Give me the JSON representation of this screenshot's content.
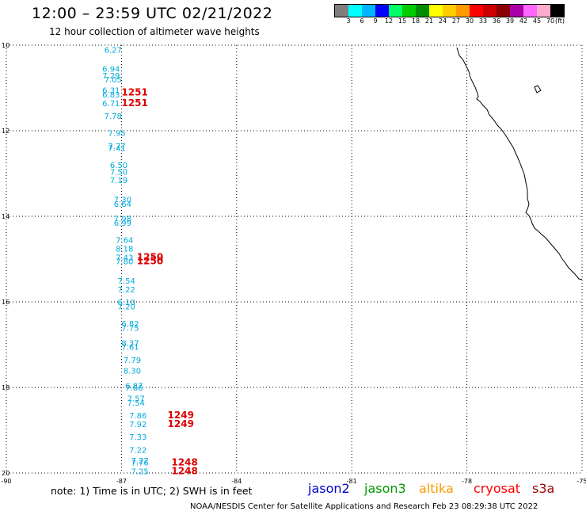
{
  "header": {
    "title": "12:00 – 23:59 UTC 02/21/2022",
    "subtitle": "12 hour collection of altimeter wave heights"
  },
  "color_scale": {
    "colors": [
      "#7f7f7f",
      "#00ffff",
      "#00b4ff",
      "#0000ff",
      "#00ff66",
      "#00cc00",
      "#008c00",
      "#ffff00",
      "#ffcc00",
      "#ff9900",
      "#ff0000",
      "#cc0000",
      "#8c0000",
      "#aa00aa",
      "#ff66ff",
      "#ffaacc",
      "#000000"
    ],
    "labels": [
      "3",
      "6",
      "9",
      "12",
      "15",
      "18",
      "21",
      "24",
      "27",
      "30",
      "33",
      "36",
      "39",
      "42",
      "45",
      "70",
      "(ft)"
    ]
  },
  "axes": {
    "lat_labels": [
      "10",
      "12",
      "14",
      "16",
      "18",
      "20"
    ],
    "lon_labels": [
      "-90",
      "-87",
      "-84",
      "-81",
      "-78",
      "-75"
    ]
  },
  "wave_readings": [
    {
      "lat": 10.1,
      "lon": -87.45,
      "text": "6.27"
    },
    {
      "lat": 10.55,
      "lon": -87.5,
      "text": "6.94"
    },
    {
      "lat": 10.7,
      "lon": -87.5,
      "text": "7.29"
    },
    {
      "lat": 10.8,
      "lon": -87.45,
      "text": "7.05"
    },
    {
      "lat": 11.05,
      "lon": -87.5,
      "text": "6.31"
    },
    {
      "lat": 11.15,
      "lon": -87.5,
      "text": "6.83"
    },
    {
      "lat": 11.35,
      "lon": -87.5,
      "text": "6.71"
    },
    {
      "lat": 11.65,
      "lon": -87.45,
      "text": "7.78"
    },
    {
      "lat": 12.05,
      "lon": -87.35,
      "text": "7.95"
    },
    {
      "lat": 12.35,
      "lon": -87.35,
      "text": "7.77"
    },
    {
      "lat": 12.4,
      "lon": -87.35,
      "text": "7.41"
    },
    {
      "lat": 12.8,
      "lon": -87.3,
      "text": "6.50"
    },
    {
      "lat": 12.95,
      "lon": -87.3,
      "text": "7.50"
    },
    {
      "lat": 13.15,
      "lon": -87.3,
      "text": "7.19"
    },
    {
      "lat": 13.6,
      "lon": -87.2,
      "text": "7.30"
    },
    {
      "lat": 13.7,
      "lon": -87.2,
      "text": "6.64"
    },
    {
      "lat": 14.05,
      "lon": -87.2,
      "text": "7.98"
    },
    {
      "lat": 14.15,
      "lon": -87.2,
      "text": "6.99"
    },
    {
      "lat": 14.55,
      "lon": -87.15,
      "text": "7.64"
    },
    {
      "lat": 14.75,
      "lon": -87.15,
      "text": "8.18"
    },
    {
      "lat": 14.95,
      "lon": -87.15,
      "text": "7.43"
    },
    {
      "lat": 15.05,
      "lon": -87.15,
      "text": "7.80"
    },
    {
      "lat": 15.5,
      "lon": -87.1,
      "text": "7.54"
    },
    {
      "lat": 15.7,
      "lon": -87.1,
      "text": "7.22"
    },
    {
      "lat": 16.0,
      "lon": -87.1,
      "text": "6.10"
    },
    {
      "lat": 16.1,
      "lon": -87.1,
      "text": "7.20"
    },
    {
      "lat": 16.5,
      "lon": -87.0,
      "text": "6.82"
    },
    {
      "lat": 16.6,
      "lon": -87.0,
      "text": "7.75"
    },
    {
      "lat": 16.95,
      "lon": -87.0,
      "text": "8.37"
    },
    {
      "lat": 17.05,
      "lon": -87.0,
      "text": "7.61"
    },
    {
      "lat": 17.35,
      "lon": -86.95,
      "text": "7.79"
    },
    {
      "lat": 17.6,
      "lon": -86.95,
      "text": "8.30"
    },
    {
      "lat": 17.95,
      "lon": -86.9,
      "text": "6.87"
    },
    {
      "lat": 18.0,
      "lon": -86.9,
      "text": "7.66"
    },
    {
      "lat": 18.25,
      "lon": -86.85,
      "text": "7.57"
    },
    {
      "lat": 18.35,
      "lon": -86.85,
      "text": "7.54"
    },
    {
      "lat": 18.65,
      "lon": -86.8,
      "text": "7.86"
    },
    {
      "lat": 18.85,
      "lon": -86.8,
      "text": "7.92"
    },
    {
      "lat": 19.15,
      "lon": -86.8,
      "text": "7.33"
    },
    {
      "lat": 19.45,
      "lon": -86.8,
      "text": "7.22"
    },
    {
      "lat": 19.7,
      "lon": -86.75,
      "text": "7.27"
    },
    {
      "lat": 19.75,
      "lon": -86.75,
      "text": "7.76"
    },
    {
      "lat": 19.95,
      "lon": -86.75,
      "text": "7.25"
    }
  ],
  "track_labels": [
    {
      "lat": 11.1,
      "lon": -87.0,
      "text": "1251"
    },
    {
      "lat": 11.35,
      "lon": -87.0,
      "text": "1251"
    },
    {
      "lat": 14.95,
      "lon": -86.6,
      "text": "1250"
    },
    {
      "lat": 15.05,
      "lon": -86.6,
      "text": "1250"
    },
    {
      "lat": 18.65,
      "lon": -85.8,
      "text": "1249"
    },
    {
      "lat": 18.85,
      "lon": -85.8,
      "text": "1249"
    },
    {
      "lat": 19.75,
      "lon": -85.7,
      "text": "1248"
    },
    {
      "lat": 19.95,
      "lon": -85.7,
      "text": "1248"
    }
  ],
  "colors": {
    "reading": "#00aadd",
    "track": "#dd0000",
    "coast": "#000000",
    "grid": "#000000"
  },
  "legend": {
    "note": "note:  1) Time is in UTC;  2) SWH is in feet",
    "satellites": [
      {
        "name": "jason2",
        "color": "#0000cc"
      },
      {
        "name": "jason3",
        "color": "#009900"
      },
      {
        "name": "altika",
        "color": "#ff9900"
      },
      {
        "name": "cryosat",
        "color": "#ff0000"
      },
      {
        "name": "s3a",
        "color": "#990000"
      }
    ]
  },
  "footer": "NOAA/NESDIS Center for Satellite Applications and Research    Feb 23 08:29:38 UTC 2022"
}
